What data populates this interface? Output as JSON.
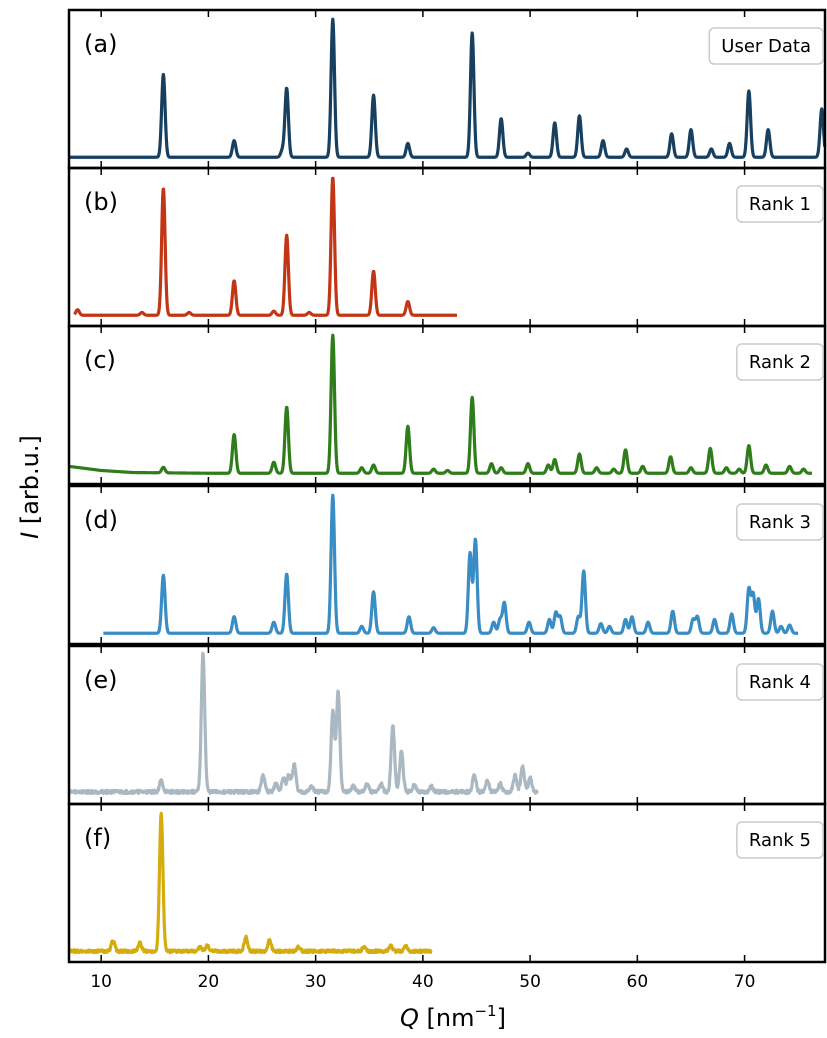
{
  "chart_data": {
    "type": "line",
    "xlabel": "Q [nm⁻¹]",
    "xlabel_parts": {
      "var": "Q",
      "unit_open": " [nm",
      "unit_sup": "−1",
      "unit_close": "]"
    },
    "ylabel": "I [arb.u.]",
    "ylabel_parts": {
      "var": "I",
      "rest": " [arb.u.]"
    },
    "xlim": [
      7,
      77.5
    ],
    "xticks": [
      10,
      20,
      30,
      40,
      50,
      60,
      70
    ],
    "xtick_labels": [
      "10",
      "20",
      "30",
      "40",
      "50",
      "60",
      "70"
    ],
    "panels": [
      {
        "letter": "(a)",
        "legend": "User Data",
        "color": "#173f5f",
        "xrange": [
          7,
          77.5
        ],
        "baseline": 0.02,
        "background": [
          [
            7,
            0.02
          ],
          [
            77.5,
            0.02
          ]
        ],
        "peaks": [
          [
            15.8,
            0.6
          ],
          [
            22.4,
            0.12
          ],
          [
            26.9,
            0.05
          ],
          [
            27.3,
            0.5
          ],
          [
            31.6,
            1.0
          ],
          [
            35.4,
            0.45
          ],
          [
            38.6,
            0.1
          ],
          [
            44.6,
            0.9
          ],
          [
            47.3,
            0.28
          ],
          [
            49.8,
            0.03
          ],
          [
            52.3,
            0.25
          ],
          [
            54.6,
            0.3
          ],
          [
            56.8,
            0.12
          ],
          [
            59.0,
            0.06
          ],
          [
            63.2,
            0.17
          ],
          [
            65.0,
            0.2
          ],
          [
            66.9,
            0.06
          ],
          [
            68.6,
            0.1
          ],
          [
            70.4,
            0.48
          ],
          [
            72.2,
            0.2
          ],
          [
            77.2,
            0.35
          ]
        ],
        "noise": 0.0
      },
      {
        "letter": "(b)",
        "legend": "Rank 1",
        "color": "#c23616",
        "xrange": [
          7.5,
          43.2
        ],
        "baseline": 0.02,
        "background": [
          [
            7.5,
            0.02
          ],
          [
            43.2,
            0.02
          ]
        ],
        "peaks": [
          [
            7.8,
            0.04
          ],
          [
            13.8,
            0.02
          ],
          [
            15.8,
            0.92
          ],
          [
            18.2,
            0.02
          ],
          [
            22.4,
            0.25
          ],
          [
            26.1,
            0.03
          ],
          [
            27.3,
            0.58
          ],
          [
            29.4,
            0.02
          ],
          [
            31.6,
            1.0
          ],
          [
            35.4,
            0.32
          ],
          [
            38.6,
            0.1
          ]
        ],
        "noise": 0.0
      },
      {
        "letter": "(c)",
        "legend": "Rank 2",
        "color": "#2e7d1a",
        "xrange": [
          7,
          76.3
        ],
        "baseline": 0.02,
        "background": [
          [
            7,
            0.07
          ],
          [
            10,
            0.04
          ],
          [
            13,
            0.025
          ],
          [
            20,
            0.02
          ],
          [
            76.3,
            0.02
          ]
        ],
        "peaks": [
          [
            15.8,
            0.04
          ],
          [
            22.4,
            0.28
          ],
          [
            26.1,
            0.08
          ],
          [
            27.3,
            0.48
          ],
          [
            31.6,
            1.0
          ],
          [
            34.3,
            0.04
          ],
          [
            35.4,
            0.06
          ],
          [
            38.6,
            0.34
          ],
          [
            41.0,
            0.03
          ],
          [
            42.3,
            0.02
          ],
          [
            44.6,
            0.55
          ],
          [
            46.4,
            0.07
          ],
          [
            47.3,
            0.04
          ],
          [
            49.8,
            0.07
          ],
          [
            51.7,
            0.06
          ],
          [
            52.3,
            0.1
          ],
          [
            54.6,
            0.14
          ],
          [
            56.2,
            0.04
          ],
          [
            57.8,
            0.03
          ],
          [
            58.9,
            0.17
          ],
          [
            60.5,
            0.05
          ],
          [
            63.1,
            0.12
          ],
          [
            65.0,
            0.04
          ],
          [
            66.8,
            0.18
          ],
          [
            68.3,
            0.04
          ],
          [
            69.5,
            0.03
          ],
          [
            70.4,
            0.2
          ],
          [
            72.0,
            0.06
          ],
          [
            74.2,
            0.05
          ],
          [
            75.5,
            0.03
          ]
        ],
        "noise": 0.0
      },
      {
        "letter": "(d)",
        "legend": "Rank 3",
        "color": "#3a8dc4",
        "xrange": [
          10.2,
          75
        ],
        "baseline": 0.02,
        "background": [
          [
            10.2,
            0.02
          ],
          [
            75,
            0.02
          ]
        ],
        "peaks": [
          [
            15.8,
            0.42
          ],
          [
            22.4,
            0.12
          ],
          [
            26.1,
            0.08
          ],
          [
            27.3,
            0.43
          ],
          [
            31.6,
            1.0
          ],
          [
            34.3,
            0.05
          ],
          [
            35.4,
            0.3
          ],
          [
            38.7,
            0.12
          ],
          [
            41.0,
            0.04
          ],
          [
            44.4,
            0.58
          ],
          [
            44.9,
            0.68
          ],
          [
            46.6,
            0.08
          ],
          [
            47.2,
            0.1
          ],
          [
            47.6,
            0.22
          ],
          [
            49.9,
            0.08
          ],
          [
            51.8,
            0.1
          ],
          [
            52.4,
            0.15
          ],
          [
            52.8,
            0.12
          ],
          [
            54.5,
            0.12
          ],
          [
            55.0,
            0.45
          ],
          [
            56.6,
            0.07
          ],
          [
            57.4,
            0.05
          ],
          [
            58.9,
            0.1
          ],
          [
            59.5,
            0.12
          ],
          [
            61.0,
            0.08
          ],
          [
            63.3,
            0.16
          ],
          [
            65.2,
            0.1
          ],
          [
            65.6,
            0.12
          ],
          [
            67.2,
            0.1
          ],
          [
            68.8,
            0.14
          ],
          [
            70.4,
            0.32
          ],
          [
            70.8,
            0.28
          ],
          [
            71.3,
            0.25
          ],
          [
            72.6,
            0.16
          ],
          [
            73.4,
            0.05
          ],
          [
            74.2,
            0.06
          ]
        ],
        "noise": 0.0
      },
      {
        "letter": "(e)",
        "legend": "Rank 4",
        "color": "#aab8c2",
        "xrange": [
          7,
          50.7
        ],
        "baseline": 0.02,
        "background": [
          [
            7,
            0.03
          ],
          [
            50.7,
            0.03
          ]
        ],
        "peaks": [
          [
            15.6,
            0.08
          ],
          [
            19.5,
            1.0
          ],
          [
            25.1,
            0.12
          ],
          [
            26.3,
            0.06
          ],
          [
            27.0,
            0.1
          ],
          [
            27.5,
            0.12
          ],
          [
            28.0,
            0.2
          ],
          [
            29.6,
            0.04
          ],
          [
            31.6,
            0.58
          ],
          [
            32.1,
            0.72
          ],
          [
            33.5,
            0.04
          ],
          [
            34.8,
            0.06
          ],
          [
            36.1,
            0.06
          ],
          [
            37.2,
            0.48
          ],
          [
            38.0,
            0.3
          ],
          [
            39.2,
            0.05
          ],
          [
            40.8,
            0.04
          ],
          [
            44.8,
            0.12
          ],
          [
            46.0,
            0.08
          ],
          [
            47.2,
            0.06
          ],
          [
            48.6,
            0.12
          ],
          [
            49.3,
            0.18
          ],
          [
            50.0,
            0.1
          ]
        ],
        "noise": 0.012
      },
      {
        "letter": "(f)",
        "legend": "Rank 5",
        "color": "#d4ac0d",
        "xrange": [
          7,
          40.8
        ],
        "baseline": 0.02,
        "background": [
          [
            7,
            0.02
          ],
          [
            40.8,
            0.02
          ]
        ],
        "peaks": [
          [
            11.1,
            0.08
          ],
          [
            13.6,
            0.06
          ],
          [
            15.6,
            1.0
          ],
          [
            19.2,
            0.03
          ],
          [
            19.9,
            0.04
          ],
          [
            23.5,
            0.1
          ],
          [
            25.7,
            0.08
          ],
          [
            28.4,
            0.03
          ],
          [
            34.5,
            0.03
          ],
          [
            37.0,
            0.04
          ],
          [
            38.4,
            0.04
          ]
        ],
        "noise": 0.01
      }
    ]
  }
}
